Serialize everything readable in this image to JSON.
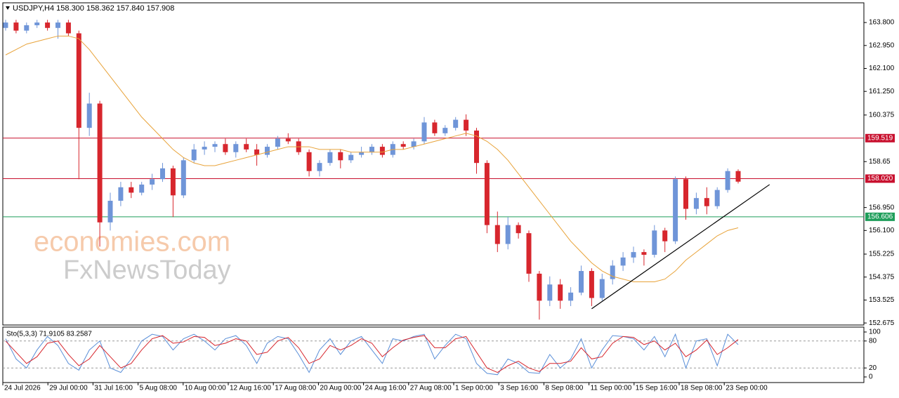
{
  "chart_data": {
    "type": "candlestick",
    "title": "USDJPY,H4  158.300 158.362 157.840 157.908",
    "bull_color": "#6f95d8",
    "bear_color": "#d7262d",
    "ohlc": [
      [
        163.6,
        163.9,
        163.5,
        163.8
      ],
      [
        163.8,
        163.9,
        163.4,
        163.5
      ],
      [
        163.5,
        163.8,
        163.4,
        163.7
      ],
      [
        163.7,
        163.9,
        163.6,
        163.8
      ],
      [
        163.8,
        163.9,
        163.5,
        163.6
      ],
      [
        163.6,
        163.9,
        163.2,
        163.8
      ],
      [
        163.8,
        163.9,
        163.3,
        163.4
      ],
      [
        163.4,
        163.5,
        158.0,
        159.9
      ],
      [
        159.9,
        161.2,
        159.6,
        160.8
      ],
      [
        160.8,
        160.9,
        155.5,
        156.4
      ],
      [
        156.4,
        157.5,
        156.1,
        157.2
      ],
      [
        157.2,
        157.9,
        157.0,
        157.7
      ],
      [
        157.7,
        157.9,
        157.3,
        157.5
      ],
      [
        157.5,
        157.9,
        157.4,
        157.8
      ],
      [
        157.8,
        158.2,
        157.6,
        158.0
      ],
      [
        158.0,
        158.6,
        157.9,
        158.4
      ],
      [
        158.4,
        158.5,
        156.6,
        157.4
      ],
      [
        157.4,
        158.8,
        157.3,
        158.7
      ],
      [
        158.7,
        159.3,
        158.6,
        159.1
      ],
      [
        159.1,
        159.4,
        158.9,
        159.2
      ],
      [
        159.2,
        159.4,
        159.0,
        159.3
      ],
      [
        159.3,
        159.5,
        158.9,
        159.0
      ],
      [
        159.0,
        159.4,
        158.8,
        159.3
      ],
      [
        159.3,
        159.5,
        159.0,
        159.1
      ],
      [
        159.1,
        159.3,
        158.5,
        158.9
      ],
      [
        158.9,
        159.3,
        158.8,
        159.2
      ],
      [
        159.2,
        159.6,
        159.1,
        159.5
      ],
      [
        159.5,
        159.7,
        159.3,
        159.4
      ],
      [
        159.4,
        159.5,
        158.9,
        159.0
      ],
      [
        159.0,
        159.1,
        158.1,
        158.3
      ],
      [
        158.3,
        158.7,
        158.1,
        158.6
      ],
      [
        158.6,
        159.1,
        158.5,
        159.0
      ],
      [
        159.0,
        159.1,
        158.4,
        158.7
      ],
      [
        158.7,
        159.0,
        158.6,
        158.9
      ],
      [
        158.9,
        159.2,
        158.8,
        159.0
      ],
      [
        159.0,
        159.3,
        158.9,
        159.2
      ],
      [
        159.2,
        159.3,
        158.8,
        158.9
      ],
      [
        158.9,
        159.4,
        158.8,
        159.3
      ],
      [
        159.3,
        159.4,
        159.1,
        159.2
      ],
      [
        159.2,
        159.5,
        159.1,
        159.4
      ],
      [
        159.4,
        160.3,
        159.3,
        160.1
      ],
      [
        160.1,
        160.2,
        159.6,
        159.7
      ],
      [
        159.7,
        160.0,
        159.6,
        159.9
      ],
      [
        159.9,
        160.3,
        159.8,
        160.2
      ],
      [
        160.2,
        160.4,
        159.6,
        159.8
      ],
      [
        159.8,
        159.9,
        158.2,
        158.6
      ],
      [
        158.6,
        158.7,
        156.0,
        156.3
      ],
      [
        156.3,
        156.8,
        155.3,
        155.6
      ],
      [
        155.6,
        156.6,
        155.4,
        156.3
      ],
      [
        156.3,
        156.4,
        155.8,
        156.0
      ],
      [
        156.0,
        156.1,
        154.2,
        154.5
      ],
      [
        154.5,
        154.6,
        152.8,
        153.5
      ],
      [
        153.5,
        154.4,
        153.3,
        154.1
      ],
      [
        154.1,
        154.3,
        153.2,
        153.5
      ],
      [
        153.5,
        154.0,
        153.3,
        153.8
      ],
      [
        153.8,
        154.8,
        153.7,
        154.6
      ],
      [
        154.6,
        154.7,
        153.3,
        153.6
      ],
      [
        153.6,
        154.5,
        153.5,
        154.3
      ],
      [
        154.3,
        155.0,
        154.1,
        154.8
      ],
      [
        154.8,
        155.3,
        154.6,
        155.1
      ],
      [
        155.1,
        155.5,
        154.9,
        155.3
      ],
      [
        155.3,
        155.4,
        154.8,
        155.2
      ],
      [
        155.2,
        156.3,
        155.1,
        156.1
      ],
      [
        156.1,
        156.2,
        155.3,
        155.7
      ],
      [
        155.7,
        158.1,
        155.6,
        158.0
      ],
      [
        158.0,
        158.1,
        156.5,
        156.9
      ],
      [
        156.9,
        157.5,
        156.7,
        157.3
      ],
      [
        157.3,
        157.7,
        156.7,
        157.0
      ],
      [
        157.0,
        157.7,
        156.9,
        157.6
      ],
      [
        157.6,
        158.4,
        157.5,
        158.3
      ],
      [
        158.3,
        158.362,
        157.84,
        157.908
      ]
    ],
    "ma": {
      "color": "#e8a33a",
      "values": [
        162.6,
        162.8,
        163.0,
        163.1,
        163.2,
        163.3,
        163.3,
        163.2,
        162.8,
        162.3,
        161.8,
        161.3,
        160.8,
        160.3,
        159.9,
        159.5,
        159.1,
        158.8,
        158.6,
        158.5,
        158.5,
        158.6,
        158.7,
        158.8,
        158.9,
        159.0,
        159.1,
        159.2,
        159.2,
        159.2,
        159.1,
        159.1,
        159.1,
        159.0,
        159.0,
        159.0,
        159.0,
        159.1,
        159.1,
        159.2,
        159.3,
        159.4,
        159.5,
        159.6,
        159.7,
        159.6,
        159.4,
        159.1,
        158.7,
        158.2,
        157.7,
        157.2,
        156.7,
        156.2,
        155.7,
        155.3,
        154.9,
        154.6,
        154.4,
        154.3,
        154.2,
        154.2,
        154.2,
        154.3,
        154.6,
        155.0,
        155.3,
        155.6,
        155.9,
        156.1,
        156.2
      ]
    },
    "levels": [
      {
        "value": 159.519,
        "color": "#c8102e"
      },
      {
        "value": 158.02,
        "label": "158.020",
        "color": "#c8102e"
      },
      {
        "value": 156.606,
        "color": "#1e9e5a"
      }
    ],
    "trendline": {
      "color": "#000000",
      "from": [
        56,
        153.2
      ],
      "to": [
        73,
        157.8
      ]
    },
    "ylim": [
      152.6,
      164.53
    ],
    "yticks": [
      {
        "value": 163.8,
        "label": "163.800"
      },
      {
        "value": 162.95,
        "label": "162.950"
      },
      {
        "value": 162.1,
        "label": "162.100"
      },
      {
        "value": 161.25,
        "label": "161.250"
      },
      160.375,
      158.65,
      {
        "value": 156.95,
        "label": "156.950"
      },
      {
        "value": 156.1,
        "label": "156.100"
      },
      155.225,
      154.375,
      153.525,
      152.675
    ],
    "x_labels": [
      "24 Jul 2026",
      "29 Jul 00:00",
      "31 Jul 16:00",
      "5 Aug 08:00",
      "10 Aug 00:00",
      "12 Aug 16:00",
      "17 Aug 08:00",
      "20 Aug 00:00",
      "24 Aug 16:00",
      "27 Aug 08:00",
      "1 Sep 00:00",
      "3 Sep 16:00",
      "8 Sep 08:00",
      "11 Sep 00:00",
      "15 Sep 16:00",
      "18 Sep 08:00",
      "23 Sep 00:00"
    ],
    "watermark": [
      "economies.com",
      "FxNewsToday"
    ],
    "stochastic": {
      "label": "Sto(5,3,3) 71.9105 83.2587",
      "ylim": [
        -12.5,
        110.9
      ],
      "yticks": [
        100,
        80,
        20,
        0
      ],
      "levels": [
        80,
        20
      ],
      "series": [
        {
          "name": "main",
          "color": "#5a8fd8",
          "values": [
            85,
            40,
            20,
            60,
            90,
            70,
            30,
            15,
            60,
            80,
            20,
            10,
            40,
            80,
            95,
            90,
            60,
            85,
            95,
            80,
            60,
            85,
            92,
            70,
            30,
            75,
            90,
            85,
            50,
            10,
            60,
            85,
            50,
            80,
            90,
            60,
            30,
            85,
            80,
            90,
            95,
            40,
            70,
            95,
            85,
            30,
            8,
            5,
            40,
            30,
            10,
            8,
            50,
            20,
            40,
            85,
            20,
            60,
            92,
            90,
            85,
            60,
            90,
            45,
            95,
            20,
            80,
            85,
            25,
            95,
            71.9105
          ]
        },
        {
          "name": "signal",
          "color": "#d7262d",
          "values": [
            80,
            55,
            30,
            45,
            75,
            80,
            50,
            25,
            40,
            70,
            45,
            20,
            30,
            60,
            85,
            92,
            75,
            78,
            90,
            88,
            70,
            75,
            85,
            80,
            50,
            55,
            80,
            88,
            65,
            30,
            40,
            70,
            60,
            70,
            85,
            75,
            45,
            65,
            82,
            88,
            92,
            65,
            65,
            85,
            90,
            55,
            20,
            10,
            25,
            35,
            20,
            12,
            30,
            30,
            35,
            65,
            40,
            45,
            75,
            90,
            88,
            72,
            80,
            60,
            75,
            45,
            60,
            82,
            50,
            65,
            83.2587
          ]
        }
      ]
    }
  }
}
